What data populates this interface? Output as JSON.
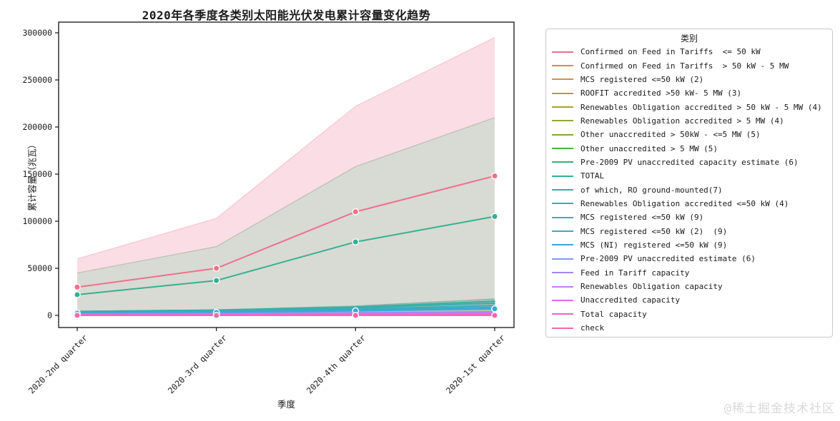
{
  "title": "2020年各季度各类别太阳能光伏发电累计容量变化趋势",
  "watermark": "@稀土掘金技术社区",
  "axes": {
    "x_label": "季度",
    "y_label": "累计容量（兆瓦）",
    "y_ticks": [
      "0",
      "50000",
      "100000",
      "150000",
      "200000",
      "250000",
      "300000"
    ],
    "x_ticks": [
      "2020-2nd quarter",
      "2020-3rd quarter",
      "2020-4th quarter",
      "2020-1st quarter"
    ]
  },
  "legend": {
    "title": "类别"
  },
  "chart_data": {
    "type": "line",
    "title": "2020年各季度各类别太阳能光伏发电累计容量变化趋势",
    "xlabel": "季度",
    "ylabel": "累计容量（兆瓦）",
    "categories": [
      "2020-2nd quarter",
      "2020-3rd quarter",
      "2020-4th quarter",
      "2020-1st quarter"
    ],
    "ylim": [
      -15000,
      310000
    ],
    "y_tick_values": [
      0,
      50000,
      100000,
      150000,
      200000,
      250000,
      300000
    ],
    "legend_position": "right",
    "grid": false,
    "areas": [
      {
        "name": "pink-band",
        "top": [
          60000,
          103000,
          222000,
          295000
        ],
        "fill": "#fbdde5",
        "edge": "#f6c6d2"
      },
      {
        "name": "gray-band",
        "top": [
          45000,
          73000,
          158000,
          210000
        ],
        "fill": "#d8dad4",
        "edge": "#b9c0b3"
      },
      {
        "name": "teal-band",
        "top": [
          4500,
          6000,
          10000,
          17500
        ],
        "fill": "#a9c2b6",
        "edge": "#8db3a5"
      }
    ],
    "series": [
      {
        "name": "Confirmed on Feed in Tariffs  <= 50 kW",
        "color": "#ef7189",
        "values": [
          30000,
          50000,
          110000,
          148000
        ],
        "markers": true
      },
      {
        "name": "Confirmed on Feed in Tariffs  > 50 kW - 5 MW",
        "color": "#ec7f52",
        "values": [
          1200,
          1600,
          2100,
          2800
        ],
        "markers": false
      },
      {
        "name": "MCS registered <=50 kW (2)",
        "color": "#d78f3d",
        "values": [
          1100,
          1500,
          2000,
          2600
        ],
        "markers": false
      },
      {
        "name": "ROOFIT accredited >50 kW- 5 MW (3)",
        "color": "#bf9732",
        "values": [
          900,
          1200,
          1700,
          2300
        ],
        "markers": false
      },
      {
        "name": "Renewables Obligation accredited > 50 kW - 5 MW (4)",
        "color": "#ac9e33",
        "values": [
          800,
          1100,
          1500,
          2000
        ],
        "markers": false
      },
      {
        "name": "Renewables Obligation accredited > 5 MW (4)",
        "color": "#96a531",
        "values": [
          700,
          1000,
          1400,
          1800
        ],
        "markers": false
      },
      {
        "name": "Other unaccredited > 50kW - <=5 MW (5)",
        "color": "#7cad34",
        "values": [
          600,
          900,
          1200,
          1600
        ],
        "markers": false
      },
      {
        "name": "Other unaccredited > 5 MW (5)",
        "color": "#4ab247",
        "values": [
          500,
          800,
          1100,
          1400
        ],
        "markers": false
      },
      {
        "name": "Pre-2009 PV unaccredited capacity estimate (6)",
        "color": "#34b379",
        "values": [
          450,
          700,
          950,
          1250
        ],
        "markers": false
      },
      {
        "name": "TOTAL",
        "color": "#35b092",
        "values": [
          22000,
          37000,
          78000,
          105000
        ],
        "markers": true
      },
      {
        "name": "of which, RO ground-mounted(7)",
        "color": "#36b0a2",
        "values": [
          4200,
          5600,
          8800,
          15000
        ],
        "markers": false
      },
      {
        "name": "Renewables Obligation accredited <=50 kW (4)",
        "color": "#37afae",
        "values": [
          3800,
          5000,
          8000,
          13000
        ],
        "markers": false
      },
      {
        "name": "MCS registered <=50 kW (9)",
        "color": "#38adbb",
        "values": [
          3300,
          4300,
          6600,
          10500
        ],
        "markers": false
      },
      {
        "name": "MCS registered <=50 kW (2)  (9)",
        "color": "#39abc9",
        "values": [
          2900,
          3700,
          5600,
          8600
        ],
        "markers": false
      },
      {
        "name": "MCS (NI) registered <=50 kW (9)",
        "color": "#3aa7dc",
        "values": [
          2400,
          3100,
          4800,
          7000
        ],
        "markers": true
      },
      {
        "name": "Pre-2009 PV unaccredited estimate (6)",
        "color": "#7b9bf0",
        "values": [
          1700,
          2100,
          2800,
          3600
        ],
        "markers": false
      },
      {
        "name": "Feed in Tariff capacity",
        "color": "#a388f2",
        "values": [
          1400,
          1700,
          2300,
          3000
        ],
        "markers": false
      },
      {
        "name": "Renewables Obligation capacity",
        "color": "#c77df0",
        "values": [
          1100,
          1400,
          1900,
          2500
        ],
        "markers": false
      },
      {
        "name": "Unaccredited capacity",
        "color": "#e66ce6",
        "values": [
          800,
          1000,
          1400,
          1800
        ],
        "markers": false
      },
      {
        "name": "Total capacity",
        "color": "#f263c7",
        "values": [
          400,
          550,
          750,
          1000
        ],
        "markers": false
      },
      {
        "name": "check",
        "color": "#f569a9",
        "values": [
          0,
          0,
          0,
          0
        ],
        "markers": true
      }
    ]
  }
}
